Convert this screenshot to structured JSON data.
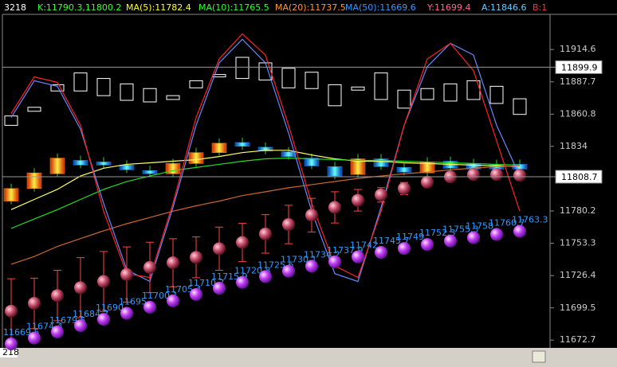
{
  "header": {
    "items": [
      {
        "text": "3218",
        "color": "#ffffff"
      },
      {
        "text": "K:11790.3,11800.2",
        "color": "#33ff33"
      },
      {
        "text": "MA(5):11782.4",
        "color": "#ffff33"
      },
      {
        "text": "MA(10):11765.5",
        "color": "#33ff33"
      },
      {
        "text": "MA(20):11737.5",
        "color": "#ff9933"
      },
      {
        "text": "MA(50):11669.6",
        "color": "#3399ff"
      },
      {
        "text": "Y:11699.4",
        "color": "#ff6699"
      },
      {
        "text": "A:11846.6",
        "color": "#66ccff"
      },
      {
        "text": "B:1",
        "color": "#ff3333"
      }
    ]
  },
  "footer": {
    "text": "218"
  },
  "chart_data": {
    "type": "stock",
    "ylim": [
      11666.2,
      11943.9
    ],
    "yticks": [
      11914.6,
      11887.7,
      11860.8,
      11834,
      11780.2,
      11753.3,
      11726.4,
      11699.5,
      11672.7
    ],
    "ref_lines": [
      11899.9,
      11808.7
    ],
    "hollow_candles": {
      "color": "#ffffff",
      "top": [
        11859.3,
        11866.5,
        11885.3,
        11895.1,
        11890.5,
        11886.0,
        11882.1,
        11876.2,
        11888.6,
        11893.8,
        11908.1,
        11903.5,
        11899.0,
        11895.7,
        11885.3,
        11883.4,
        11895.1,
        11880.8,
        11882.1,
        11886.0,
        11888.6,
        11884.0,
        11873.6
      ],
      "bottom": [
        11851.5,
        11863.2,
        11880.1,
        11880.1,
        11876.2,
        11872.3,
        11871.0,
        11873.0,
        11882.7,
        11891.8,
        11890.5,
        11889.2,
        11882.7,
        11882.1,
        11867.8,
        11880.8,
        11873.0,
        11865.8,
        11873.0,
        11871.7,
        11873.0,
        11869.7,
        11860.6
      ]
    },
    "candles": {
      "up_color": "#ff8800",
      "down_color": "#1e90ff",
      "open": [
        11788.4,
        11798.9,
        11811.2,
        11822.3,
        11821.0,
        11818.4,
        11813.8,
        11811.2,
        11819.7,
        11828.8,
        11837.2,
        11833.3,
        11829.4,
        11824.2,
        11817.1,
        11810.6,
        11823.6,
        11816.4,
        11811.9,
        11821.6,
        11819.7,
        11819.0,
        11819.0
      ],
      "close": [
        11798.9,
        11811.9,
        11824.2,
        11818.4,
        11818.4,
        11814.5,
        11811.2,
        11819.7,
        11828.8,
        11836.6,
        11834.0,
        11830.1,
        11825.5,
        11817.7,
        11809.3,
        11823.6,
        11817.1,
        11812.5,
        11821.0,
        11815.8,
        11815.1,
        11815.1,
        11815.1
      ]
    },
    "series": [
      {
        "color": "#ffff66",
        "values": [
          11781.3,
          11789.8,
          11798.2,
          11809.3,
          11815.8,
          11819.0,
          11820.3,
          11821.6,
          11822.9,
          11825.5,
          11828.8,
          11830.7,
          11830.7,
          11826.8,
          11823.6,
          11821.6,
          11821.6,
          11820.3,
          11819.7,
          11819.0,
          11818.4,
          11817.7,
          11817.1
        ]
      },
      {
        "color": "#22dd22",
        "values": [
          11765.7,
          11773.5,
          11781.3,
          11789.8,
          11798.2,
          11804.7,
          11809.3,
          11813.8,
          11816.4,
          11819.0,
          11821.6,
          11823.6,
          11824.2,
          11823.6,
          11822.9,
          11822.3,
          11822.3,
          11821.6,
          11821.0,
          11820.3,
          11819.7,
          11819.0,
          11818.4
        ]
      },
      {
        "color": "#cc6633",
        "values": [
          11735.8,
          11742.3,
          11750.7,
          11757.2,
          11763.7,
          11769.6,
          11774.8,
          11780.0,
          11784.5,
          11788.4,
          11793.0,
          11796.2,
          11799.5,
          11802.1,
          11804.7,
          11807.3,
          11809.3,
          11811.2,
          11812.5,
          11814.5,
          11815.8,
          11817.1,
          11817.7
        ]
      },
      {
        "color": "#6688ff",
        "values": [
          11858.0,
          11888.6,
          11884.0,
          11848.3,
          11786.5,
          11731.2,
          11721.5,
          11783.2,
          11851.5,
          11903.5,
          11923.1,
          11903.5,
          11845.0,
          11780.0,
          11728.0,
          11721.5,
          11783.2,
          11851.5,
          11900.3,
          11919.8,
          11910.0,
          11851.5,
          11809.3
        ]
      },
      {
        "color": "#ff2222",
        "values": [
          11861.3,
          11891.8,
          11887.3,
          11851.5,
          11780.0,
          11728.0,
          11724.8,
          11786.5,
          11858.0,
          11906.8,
          11927.6,
          11910.0,
          11851.5,
          11786.5,
          11734.5,
          11724.8,
          11780.0,
          11851.5,
          11906.8,
          11919.8,
          11897.0,
          11838.5,
          11780.0
        ]
      }
    ],
    "pink_balls": {
      "color": "#ff4444",
      "values": [
        11696.8,
        11703.3,
        11709.8,
        11716.3,
        11721.5,
        11727.3,
        11733.2,
        11737.1,
        11741.6,
        11748.8,
        11754.0,
        11761.1,
        11768.9,
        11776.7,
        11783.2,
        11789.1,
        11793.6,
        11798.9,
        11804.1,
        11808.6,
        11810.6,
        11810.6,
        11809.9
      ],
      "error": [
        27,
        21,
        21,
        25,
        25,
        23,
        21,
        20,
        17,
        18,
        16,
        16,
        16,
        14,
        13,
        9,
        6,
        5,
        3,
        3,
        2,
        2,
        2
      ]
    },
    "purple_balls": {
      "label_color": "#3399ff",
      "values": [
        11669.5,
        11674.4,
        11679.5,
        11684.7,
        11690,
        11695,
        11700.1,
        11705.4,
        11710.7,
        11715.9,
        11720.8,
        11725.6,
        11730.1,
        11734.2,
        11737.9,
        11742,
        11745.7,
        11749,
        11752.3,
        11755.3,
        11758,
        11760.7,
        11763.3
      ]
    }
  }
}
